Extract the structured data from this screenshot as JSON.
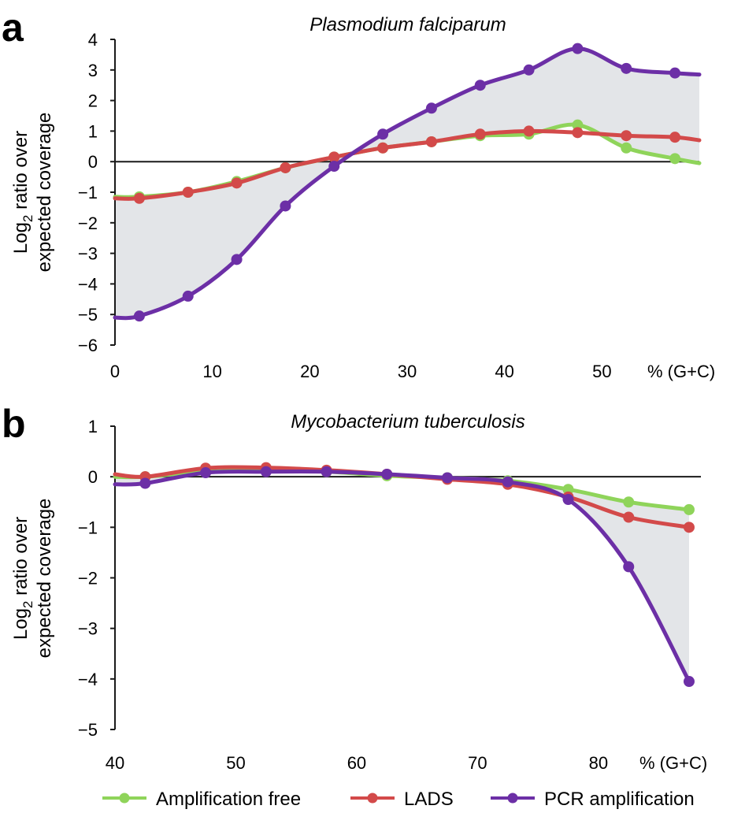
{
  "colors": {
    "amplification_free": "#8fd45a",
    "lads": "#d34a4a",
    "pcr": "#6c2fa6",
    "shade": "#e3e5e8",
    "axis": "#1a1a1a"
  },
  "legend": {
    "entries": [
      "Amplification free",
      "LADS",
      "PCR amplification"
    ]
  },
  "chart_data": [
    {
      "panel": "a",
      "type": "line",
      "title": "Plasmodium falciparum",
      "ylabel_main": "Log",
      "ylabel_sub": "2",
      "ylabel_rest": " ratio over",
      "ylabel_line2": "expected coverage",
      "x_unit_label": "% (G+C)",
      "xlim": [
        0,
        60
      ],
      "ylim": [
        -6,
        4
      ],
      "xticks": [
        0,
        10,
        20,
        30,
        40,
        50
      ],
      "xtick_labels": [
        "0",
        "10",
        "20",
        "30",
        "40",
        "50"
      ],
      "yticks": [
        4,
        3,
        2,
        1,
        0,
        -1,
        -2,
        -3,
        -4,
        -5,
        -6
      ],
      "ytick_labels": [
        "4",
        "3",
        "2",
        "1",
        "0",
        "−1",
        "−2",
        "−3",
        "−4",
        "−5",
        "−6"
      ],
      "x": [
        2.5,
        7.5,
        12.5,
        17.5,
        22.5,
        27.5,
        32.5,
        37.5,
        42.5,
        47.5,
        52.5,
        57.5
      ],
      "shade_between": [
        "Amplification free",
        "PCR amplification"
      ],
      "series": [
        {
          "name": "Amplification free",
          "key": "amplification_free",
          "start": [
            0,
            -1.15
          ],
          "end": [
            60,
            -0.05
          ],
          "values": [
            -1.15,
            -1.0,
            -0.65,
            -0.2,
            0.15,
            0.45,
            0.65,
            0.85,
            0.9,
            1.2,
            0.45,
            0.1
          ]
        },
        {
          "name": "LADS",
          "key": "lads",
          "start": [
            0,
            -1.2
          ],
          "end": [
            60,
            0.7
          ],
          "values": [
            -1.2,
            -1.0,
            -0.7,
            -0.2,
            0.15,
            0.45,
            0.65,
            0.9,
            1.0,
            0.95,
            0.85,
            0.8
          ]
        },
        {
          "name": "PCR amplification",
          "key": "pcr",
          "start": [
            0,
            -5.1
          ],
          "end": [
            60,
            2.85
          ],
          "values": [
            -5.05,
            -4.4,
            -3.2,
            -1.45,
            -0.15,
            0.9,
            1.75,
            2.5,
            3.0,
            3.7,
            3.05,
            2.9
          ]
        }
      ]
    },
    {
      "panel": "b",
      "type": "line",
      "title": "Mycobacterium tuberculosis",
      "ylabel_main": "Log",
      "ylabel_sub": "2",
      "ylabel_rest": " ratio over",
      "ylabel_line2": "expected coverage",
      "x_unit_label": "% (G+C)",
      "xlim": [
        40,
        89
      ],
      "ylim": [
        -5,
        1
      ],
      "xticks": [
        40,
        50,
        60,
        70,
        80
      ],
      "xtick_labels": [
        "40",
        "50",
        "60",
        "70",
        "80"
      ],
      "yticks": [
        1,
        0,
        -1,
        -2,
        -3,
        -4,
        -5
      ],
      "ytick_labels": [
        "1",
        "0",
        "−1",
        "−2",
        "−3",
        "−4",
        "−5"
      ],
      "x": [
        42.5,
        47.5,
        52.5,
        57.5,
        62.5,
        67.5,
        72.5,
        77.5,
        82.5,
        87.5
      ],
      "shade_between": [
        "Amplification free",
        "PCR amplification"
      ],
      "series": [
        {
          "name": "Amplification free",
          "key": "amplification_free",
          "start": [
            40,
            0.0
          ],
          "end": null,
          "values": [
            0.0,
            0.1,
            0.12,
            0.1,
            0.02,
            -0.02,
            -0.08,
            -0.25,
            -0.5,
            -0.65
          ]
        },
        {
          "name": "LADS",
          "key": "lads",
          "start": [
            40,
            0.05
          ],
          "end": null,
          "values": [
            0.0,
            0.17,
            0.18,
            0.13,
            0.05,
            -0.05,
            -0.15,
            -0.4,
            -0.8,
            -1.0
          ]
        },
        {
          "name": "PCR amplification",
          "key": "pcr",
          "start": [
            40,
            -0.15
          ],
          "end": null,
          "values": [
            -0.13,
            0.08,
            0.1,
            0.1,
            0.05,
            -0.02,
            -0.1,
            -0.45,
            -1.78,
            -4.05
          ]
        }
      ]
    }
  ]
}
